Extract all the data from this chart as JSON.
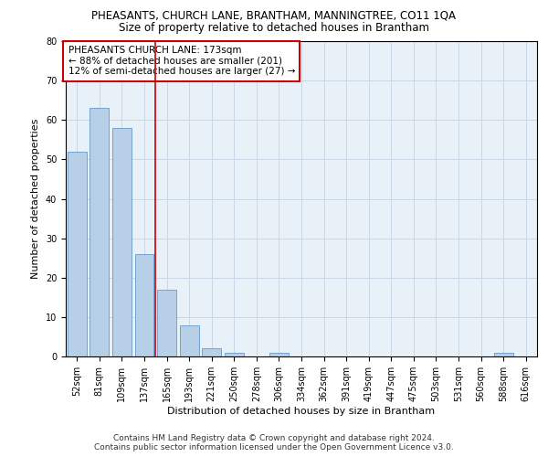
{
  "title1": "PHEASANTS, CHURCH LANE, BRANTHAM, MANNINGTREE, CO11 1QA",
  "title2": "Size of property relative to detached houses in Brantham",
  "xlabel": "Distribution of detached houses by size in Brantham",
  "ylabel": "Number of detached properties",
  "categories": [
    "52sqm",
    "81sqm",
    "109sqm",
    "137sqm",
    "165sqm",
    "193sqm",
    "221sqm",
    "250sqm",
    "278sqm",
    "306sqm",
    "334sqm",
    "362sqm",
    "391sqm",
    "419sqm",
    "447sqm",
    "475sqm",
    "503sqm",
    "531sqm",
    "560sqm",
    "588sqm",
    "616sqm"
  ],
  "values": [
    52,
    63,
    58,
    26,
    17,
    8,
    2,
    1,
    0,
    1,
    0,
    0,
    0,
    0,
    0,
    0,
    0,
    0,
    0,
    1,
    0
  ],
  "bar_color": "#b8cfe8",
  "bar_edge_color": "#6699cc",
  "vline_x": 3.5,
  "vline_color": "#cc0000",
  "annotation_line1": "PHEASANTS CHURCH LANE: 173sqm",
  "annotation_line2": "← 88% of detached houses are smaller (201)",
  "annotation_line3": "12% of semi-detached houses are larger (27) →",
  "annotation_box_color": "#ffffff",
  "annotation_box_edge_color": "#cc0000",
  "ylim": [
    0,
    80
  ],
  "yticks": [
    0,
    10,
    20,
    30,
    40,
    50,
    60,
    70,
    80
  ],
  "grid_color": "#c8d8e8",
  "bg_color": "#e8f0f8",
  "footnote1": "Contains HM Land Registry data © Crown copyright and database right 2024.",
  "footnote2": "Contains public sector information licensed under the Open Government Licence v3.0.",
  "title1_fontsize": 8.5,
  "title2_fontsize": 8.5,
  "xlabel_fontsize": 8,
  "ylabel_fontsize": 8,
  "tick_fontsize": 7,
  "annotation_fontsize": 7.5,
  "footnote_fontsize": 6.5
}
